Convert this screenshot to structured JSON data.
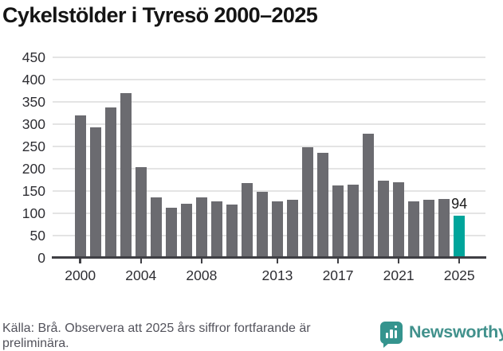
{
  "title": "Cykelstölder i Tyresö 2000–2025",
  "footer": {
    "source_note": "Källa: Brå. Observera att 2025 års siffror fortfarande är preliminära."
  },
  "branding": {
    "logo_text": "Newsworthy",
    "logo_color": "#41918c",
    "logo_icon": "speech-bubble-with-bar-chart"
  },
  "chart_data": {
    "type": "bar",
    "title": "Cykelstölder i Tyresö 2000–2025",
    "xlabel": "",
    "ylabel": "",
    "categories": [
      2000,
      2001,
      2002,
      2003,
      2004,
      2005,
      2006,
      2007,
      2008,
      2009,
      2010,
      2011,
      2012,
      2013,
      2014,
      2015,
      2016,
      2017,
      2018,
      2019,
      2020,
      2021,
      2022,
      2023,
      2024,
      2025
    ],
    "values": [
      320,
      293,
      337,
      370,
      203,
      135,
      112,
      122,
      135,
      126,
      119,
      168,
      148,
      127,
      130,
      248,
      236,
      162,
      164,
      279,
      174,
      170,
      126,
      131,
      133,
      94
    ],
    "highlight_index": 25,
    "annotation": {
      "text": "94",
      "index": 25
    },
    "xticks": [
      2000,
      2004,
      2008,
      2013,
      2017,
      2021,
      2025
    ],
    "yticks": [
      0,
      50,
      100,
      150,
      200,
      250,
      300,
      350,
      400,
      450
    ],
    "ylim": [
      0,
      450
    ],
    "grid": "horizontal",
    "legend": "none",
    "bar_color": "#6b6b70",
    "highlight_color": "#00a59b",
    "axis_color": "#3f3f44",
    "gridline_color": "#e4e4e4"
  }
}
